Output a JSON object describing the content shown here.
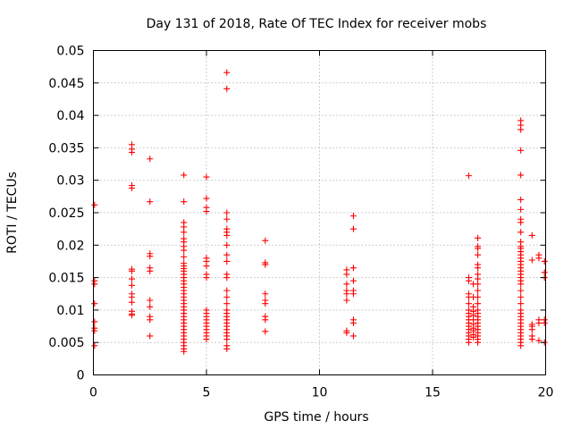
{
  "chart_data": {
    "type": "scatter",
    "title": "Day 131 of 2018, Rate Of TEC Index for receiver mobs",
    "xlabel": "GPS time / hours",
    "ylabel": "ROTI / TECUs",
    "xlim": [
      0,
      20
    ],
    "ylim": [
      0,
      0.05
    ],
    "grid": true,
    "marker": "+",
    "marker_color": "#ff0000",
    "x_ticks": [
      0,
      5,
      10,
      15,
      20
    ],
    "x_tick_labels": [
      "0",
      "5",
      "10",
      "15",
      "20"
    ],
    "y_ticks": [
      0,
      0.005,
      0.01,
      0.015,
      0.02,
      0.025,
      0.03,
      0.035,
      0.04,
      0.045,
      0.05
    ],
    "y_tick_labels": [
      "0",
      "0.005",
      "0.01",
      "0.015",
      "0.02",
      "0.025",
      "0.03",
      "0.035",
      "0.04",
      "0.045",
      "0.05"
    ],
    "series": [
      {
        "name": "ROTI",
        "points": [
          [
            0.05,
            0.0262
          ],
          [
            0.05,
            0.0145
          ],
          [
            0.05,
            0.014
          ],
          [
            0.05,
            0.011
          ],
          [
            0.05,
            0.0082
          ],
          [
            0.05,
            0.0072
          ],
          [
            0.05,
            0.0068
          ],
          [
            0.05,
            0.0045
          ],
          [
            1.7,
            0.0355
          ],
          [
            1.7,
            0.0348
          ],
          [
            1.7,
            0.0343
          ],
          [
            1.7,
            0.0292
          ],
          [
            1.7,
            0.0288
          ],
          [
            1.7,
            0.0163
          ],
          [
            1.7,
            0.016
          ],
          [
            1.7,
            0.0148
          ],
          [
            1.7,
            0.0138
          ],
          [
            1.7,
            0.0125
          ],
          [
            1.7,
            0.012
          ],
          [
            1.7,
            0.0112
          ],
          [
            1.7,
            0.0098
          ],
          [
            1.7,
            0.0094
          ],
          [
            1.7,
            0.0092
          ],
          [
            2.5,
            0.0333
          ],
          [
            2.5,
            0.0267
          ],
          [
            2.5,
            0.0187
          ],
          [
            2.5,
            0.0183
          ],
          [
            2.5,
            0.0165
          ],
          [
            2.5,
            0.016
          ],
          [
            2.5,
            0.0115
          ],
          [
            2.5,
            0.0105
          ],
          [
            2.5,
            0.009
          ],
          [
            2.5,
            0.0085
          ],
          [
            2.5,
            0.006
          ],
          [
            4.0,
            0.0308
          ],
          [
            4.0,
            0.0267
          ],
          [
            4.0,
            0.0235
          ],
          [
            4.0,
            0.0228
          ],
          [
            4.0,
            0.022
          ],
          [
            4.0,
            0.021
          ],
          [
            4.0,
            0.0205
          ],
          [
            4.0,
            0.0198
          ],
          [
            4.0,
            0.0192
          ],
          [
            4.0,
            0.0182
          ],
          [
            4.0,
            0.0172
          ],
          [
            4.0,
            0.0168
          ],
          [
            4.0,
            0.0164
          ],
          [
            4.0,
            0.016
          ],
          [
            4.0,
            0.0155
          ],
          [
            4.0,
            0.015
          ],
          [
            4.0,
            0.0145
          ],
          [
            4.0,
            0.014
          ],
          [
            4.0,
            0.0135
          ],
          [
            4.0,
            0.013
          ],
          [
            4.0,
            0.0125
          ],
          [
            4.0,
            0.012
          ],
          [
            4.0,
            0.0115
          ],
          [
            4.0,
            0.011
          ],
          [
            4.0,
            0.0105
          ],
          [
            4.0,
            0.01
          ],
          [
            4.0,
            0.0095
          ],
          [
            4.0,
            0.009
          ],
          [
            4.0,
            0.0085
          ],
          [
            4.0,
            0.008
          ],
          [
            4.0,
            0.0075
          ],
          [
            4.0,
            0.007
          ],
          [
            4.0,
            0.0065
          ],
          [
            4.0,
            0.006
          ],
          [
            4.0,
            0.0055
          ],
          [
            4.0,
            0.005
          ],
          [
            4.0,
            0.0045
          ],
          [
            4.0,
            0.004
          ],
          [
            4.0,
            0.0036
          ],
          [
            5.0,
            0.0305
          ],
          [
            5.0,
            0.0272
          ],
          [
            5.0,
            0.0258
          ],
          [
            5.0,
            0.0252
          ],
          [
            5.0,
            0.018
          ],
          [
            5.0,
            0.0175
          ],
          [
            5.0,
            0.0168
          ],
          [
            5.0,
            0.0155
          ],
          [
            5.0,
            0.015
          ],
          [
            5.0,
            0.01
          ],
          [
            5.0,
            0.0095
          ],
          [
            5.0,
            0.009
          ],
          [
            5.0,
            0.0085
          ],
          [
            5.0,
            0.008
          ],
          [
            5.0,
            0.0075
          ],
          [
            5.0,
            0.007
          ],
          [
            5.0,
            0.0065
          ],
          [
            5.0,
            0.006
          ],
          [
            5.0,
            0.0055
          ],
          [
            5.9,
            0.0466
          ],
          [
            5.9,
            0.0441
          ],
          [
            5.9,
            0.025
          ],
          [
            5.9,
            0.024
          ],
          [
            5.9,
            0.0225
          ],
          [
            5.9,
            0.022
          ],
          [
            5.9,
            0.0215
          ],
          [
            5.9,
            0.02
          ],
          [
            5.9,
            0.0185
          ],
          [
            5.9,
            0.0175
          ],
          [
            5.9,
            0.0155
          ],
          [
            5.9,
            0.015
          ],
          [
            5.9,
            0.013
          ],
          [
            5.9,
            0.012
          ],
          [
            5.9,
            0.011
          ],
          [
            5.9,
            0.01
          ],
          [
            5.9,
            0.0095
          ],
          [
            5.9,
            0.009
          ],
          [
            5.9,
            0.0085
          ],
          [
            5.9,
            0.008
          ],
          [
            5.9,
            0.0075
          ],
          [
            5.9,
            0.007
          ],
          [
            5.9,
            0.0065
          ],
          [
            5.9,
            0.006
          ],
          [
            5.9,
            0.0055
          ],
          [
            5.9,
            0.0045
          ],
          [
            5.9,
            0.004
          ],
          [
            7.6,
            0.0207
          ],
          [
            7.6,
            0.0173
          ],
          [
            7.6,
            0.017
          ],
          [
            7.6,
            0.0125
          ],
          [
            7.6,
            0.0115
          ],
          [
            7.6,
            0.011
          ],
          [
            7.6,
            0.009
          ],
          [
            7.6,
            0.0085
          ],
          [
            7.6,
            0.0067
          ],
          [
            11.2,
            0.0162
          ],
          [
            11.2,
            0.0155
          ],
          [
            11.2,
            0.014
          ],
          [
            11.2,
            0.013
          ],
          [
            11.2,
            0.0125
          ],
          [
            11.2,
            0.0115
          ],
          [
            11.2,
            0.0068
          ],
          [
            11.2,
            0.0065
          ],
          [
            11.5,
            0.0245
          ],
          [
            11.5,
            0.0225
          ],
          [
            11.5,
            0.0165
          ],
          [
            11.5,
            0.0145
          ],
          [
            11.5,
            0.013
          ],
          [
            11.5,
            0.0125
          ],
          [
            11.5,
            0.0085
          ],
          [
            11.5,
            0.008
          ],
          [
            11.5,
            0.006
          ],
          [
            16.6,
            0.0307
          ],
          [
            16.6,
            0.015
          ],
          [
            16.6,
            0.0145
          ],
          [
            16.6,
            0.0125
          ],
          [
            16.6,
            0.012
          ],
          [
            16.6,
            0.011
          ],
          [
            16.6,
            0.01
          ],
          [
            16.6,
            0.0095
          ],
          [
            16.6,
            0.009
          ],
          [
            16.6,
            0.0085
          ],
          [
            16.6,
            0.008
          ],
          [
            16.6,
            0.0075
          ],
          [
            16.6,
            0.007
          ],
          [
            16.6,
            0.0065
          ],
          [
            16.6,
            0.006
          ],
          [
            16.6,
            0.0055
          ],
          [
            16.6,
            0.005
          ],
          [
            16.8,
            0.014
          ],
          [
            16.8,
            0.012
          ],
          [
            16.8,
            0.0105
          ],
          [
            16.8,
            0.0098
          ],
          [
            16.8,
            0.0092
          ],
          [
            16.8,
            0.0085
          ],
          [
            16.8,
            0.0078
          ],
          [
            16.8,
            0.0072
          ],
          [
            16.8,
            0.0068
          ],
          [
            16.8,
            0.0062
          ],
          [
            16.8,
            0.0058
          ],
          [
            17.0,
            0.0211
          ],
          [
            17.0,
            0.0198
          ],
          [
            17.0,
            0.0195
          ],
          [
            17.0,
            0.0185
          ],
          [
            17.0,
            0.017
          ],
          [
            17.0,
            0.0165
          ],
          [
            17.0,
            0.0155
          ],
          [
            17.0,
            0.0148
          ],
          [
            17.0,
            0.014
          ],
          [
            17.0,
            0.013
          ],
          [
            17.0,
            0.012
          ],
          [
            17.0,
            0.011
          ],
          [
            17.0,
            0.01
          ],
          [
            17.0,
            0.0095
          ],
          [
            17.0,
            0.009
          ],
          [
            17.0,
            0.0085
          ],
          [
            17.0,
            0.008
          ],
          [
            17.0,
            0.0075
          ],
          [
            17.0,
            0.007
          ],
          [
            17.0,
            0.0065
          ],
          [
            17.0,
            0.006
          ],
          [
            17.0,
            0.0055
          ],
          [
            17.0,
            0.005
          ],
          [
            18.9,
            0.0392
          ],
          [
            18.9,
            0.0385
          ],
          [
            18.9,
            0.0378
          ],
          [
            18.9,
            0.0346
          ],
          [
            18.9,
            0.0308
          ],
          [
            18.9,
            0.027
          ],
          [
            18.9,
            0.0255
          ],
          [
            18.9,
            0.024
          ],
          [
            18.9,
            0.0235
          ],
          [
            18.9,
            0.022
          ],
          [
            18.9,
            0.0205
          ],
          [
            18.9,
            0.0198
          ],
          [
            18.9,
            0.0195
          ],
          [
            18.9,
            0.019
          ],
          [
            18.9,
            0.0185
          ],
          [
            18.9,
            0.018
          ],
          [
            18.9,
            0.0175
          ],
          [
            18.9,
            0.017
          ],
          [
            18.9,
            0.0165
          ],
          [
            18.9,
            0.016
          ],
          [
            18.9,
            0.0155
          ],
          [
            18.9,
            0.015
          ],
          [
            18.9,
            0.0145
          ],
          [
            18.9,
            0.014
          ],
          [
            18.9,
            0.013
          ],
          [
            18.9,
            0.012
          ],
          [
            18.9,
            0.011
          ],
          [
            18.9,
            0.01
          ],
          [
            18.9,
            0.0095
          ],
          [
            18.9,
            0.009
          ],
          [
            18.9,
            0.0085
          ],
          [
            18.9,
            0.008
          ],
          [
            18.9,
            0.0075
          ],
          [
            18.9,
            0.007
          ],
          [
            18.9,
            0.0065
          ],
          [
            18.9,
            0.006
          ],
          [
            18.9,
            0.0055
          ],
          [
            18.9,
            0.005
          ],
          [
            18.9,
            0.0045
          ],
          [
            19.4,
            0.0215
          ],
          [
            19.4,
            0.0177
          ],
          [
            19.4,
            0.0078
          ],
          [
            19.4,
            0.0075
          ],
          [
            19.4,
            0.007
          ],
          [
            19.4,
            0.006
          ],
          [
            19.4,
            0.0055
          ],
          [
            19.7,
            0.0185
          ],
          [
            19.7,
            0.018
          ],
          [
            19.7,
            0.0085
          ],
          [
            19.7,
            0.008
          ],
          [
            19.7,
            0.0053
          ],
          [
            19.95,
            0.0175
          ],
          [
            19.95,
            0.0158
          ],
          [
            19.95,
            0.015
          ],
          [
            19.95,
            0.0085
          ],
          [
            19.95,
            0.008
          ],
          [
            19.95,
            0.005
          ]
        ]
      }
    ]
  }
}
